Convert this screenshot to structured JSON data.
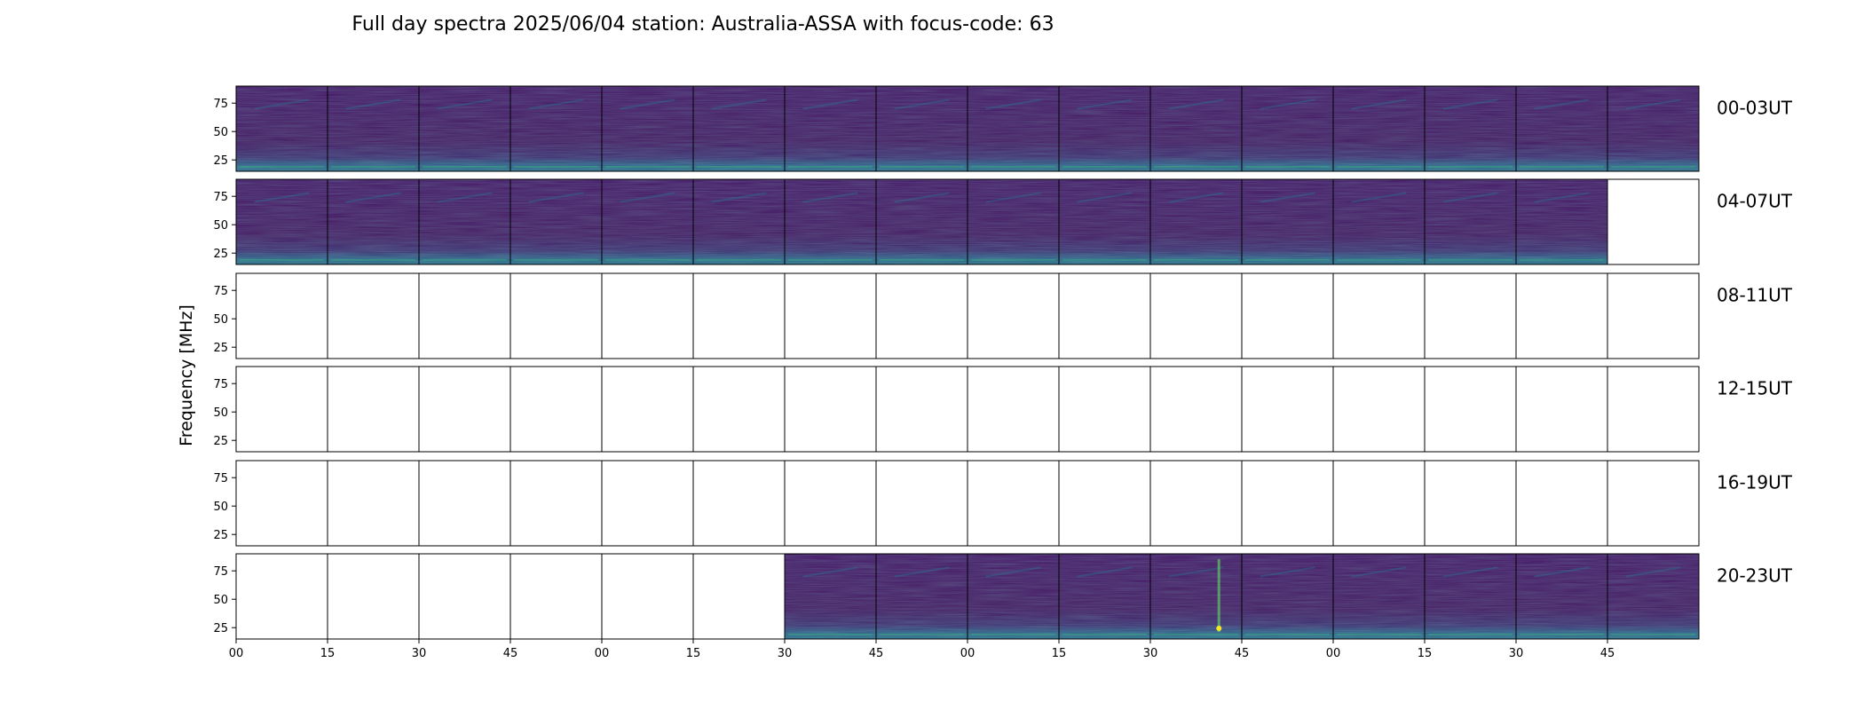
{
  "chart_data": {
    "type": "heatmap",
    "title": "Full day spectra 2025/06/04 station: Australia-ASSA with focus-code: 63",
    "ylabel": "Frequency [MHz]",
    "xlabel": "",
    "y_ticks": [
      "75",
      "50",
      "25"
    ],
    "ylim": [
      15,
      90
    ],
    "x_ticks": [
      "00",
      "15",
      "30",
      "45",
      "00",
      "15",
      "30",
      "45",
      "00",
      "15",
      "30",
      "45",
      "00",
      "15",
      "30",
      "45"
    ],
    "panels_per_row": 16,
    "minutes_per_panel": 15,
    "colormap": [
      "#440154",
      "#3b528b",
      "#21918c",
      "#5ec962",
      "#fde725"
    ],
    "background_color": "#46085c",
    "rows": [
      {
        "label": "00-03UT",
        "data_panels": [
          0,
          1,
          2,
          3,
          4,
          5,
          6,
          7,
          8,
          9,
          10,
          11,
          12,
          13,
          14,
          15
        ]
      },
      {
        "label": "04-07UT",
        "data_panels": [
          0,
          1,
          2,
          3,
          4,
          5,
          6,
          7,
          8,
          9,
          10,
          11,
          12,
          13,
          14
        ]
      },
      {
        "label": "08-11UT",
        "data_panels": []
      },
      {
        "label": "12-15UT",
        "data_panels": []
      },
      {
        "label": "16-19UT",
        "data_panels": []
      },
      {
        "label": "20-23UT",
        "data_panels": [
          6,
          7,
          8,
          9,
          10,
          11,
          12,
          13,
          14,
          15
        ]
      }
    ]
  }
}
